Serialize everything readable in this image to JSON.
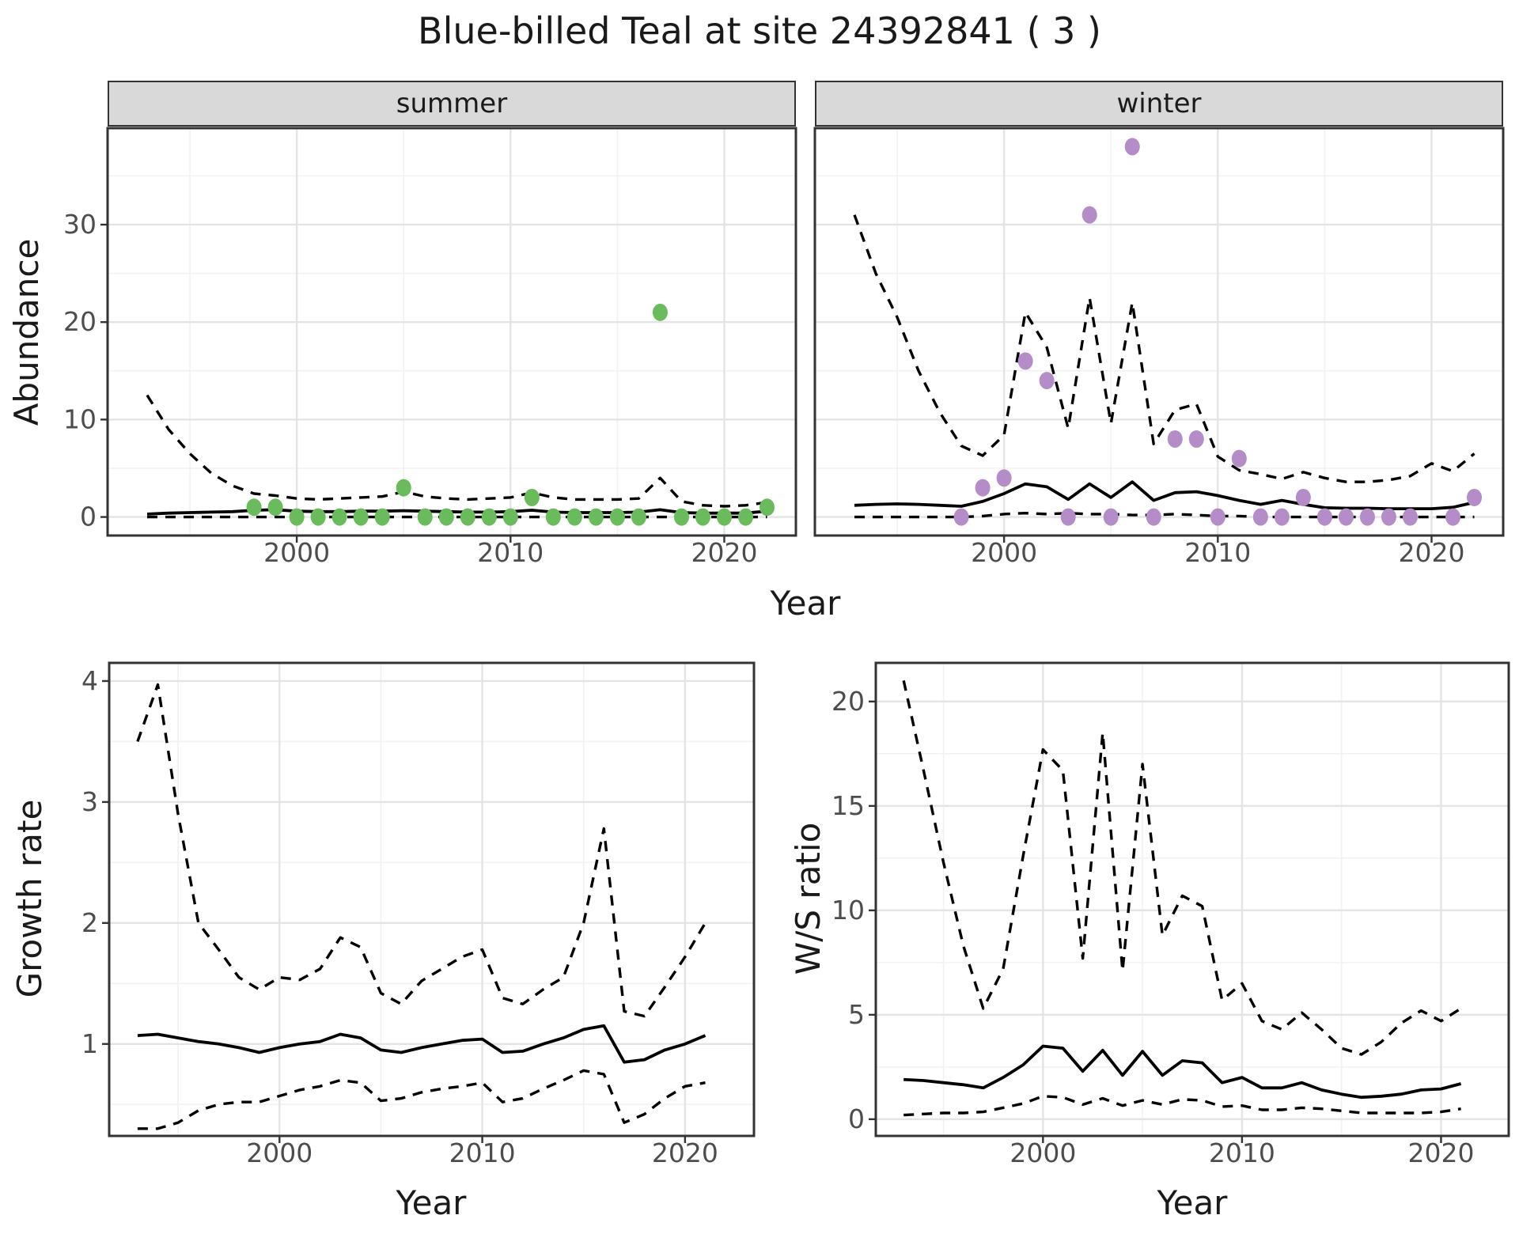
{
  "title": "Blue-billed Teal at site 24392841 ( 3 )",
  "facets": [
    {
      "label": "summer"
    },
    {
      "label": "winter"
    }
  ],
  "axis_titles": {
    "abundance": "Abundance",
    "year": "Year",
    "growth_rate": "Growth rate",
    "ws_ratio": "W/S ratio"
  },
  "colors": {
    "summer_point": "#69BB5B",
    "winter_point": "#B48CC8",
    "line": "#000000",
    "grid_major": "#E4E4E4",
    "grid_minor": "#F2F2F2",
    "panel_border": "#333333",
    "strip_bg": "#D9D9D9",
    "tick_label": "#4D4D4D"
  },
  "chart_data": [
    {
      "id": "abundance-summer",
      "type": "line",
      "facet": "summer",
      "ylabel": "Abundance",
      "xlabel": "Year",
      "x": {
        "domain": [
          1991.15,
          2023.35
        ],
        "major": [
          2000,
          2010,
          2020
        ],
        "minor": [
          1995,
          2005,
          2015
        ],
        "tick_labels": [
          "2000",
          "2010",
          "2020"
        ]
      },
      "y": {
        "domain": [
          -1.9,
          39.9
        ],
        "major": [
          0,
          10,
          20,
          30
        ],
        "minor": [
          5,
          15,
          25,
          35
        ],
        "tick_labels": [
          "0",
          "10",
          "20",
          "30"
        ]
      },
      "years": [
        1993,
        1994,
        1995,
        1996,
        1997,
        1998,
        1999,
        2000,
        2001,
        2002,
        2003,
        2004,
        2005,
        2006,
        2007,
        2008,
        2009,
        2010,
        2011,
        2012,
        2013,
        2014,
        2015,
        2016,
        2017,
        2018,
        2019,
        2020,
        2021,
        2022
      ],
      "series": {
        "median": [
          0.3,
          0.4,
          0.45,
          0.5,
          0.55,
          0.7,
          0.75,
          0.6,
          0.55,
          0.55,
          0.6,
          0.6,
          0.65,
          0.6,
          0.55,
          0.5,
          0.5,
          0.55,
          0.7,
          0.5,
          0.45,
          0.45,
          0.45,
          0.5,
          0.75,
          0.45,
          0.4,
          0.4,
          0.4,
          0.6
        ],
        "upper": [
          12.5,
          9.0,
          6.5,
          4.5,
          3.2,
          2.4,
          2.2,
          1.9,
          1.8,
          1.9,
          2.0,
          2.1,
          2.6,
          2.1,
          1.9,
          1.8,
          1.9,
          2.0,
          2.5,
          2.0,
          1.8,
          1.8,
          1.8,
          1.9,
          4.0,
          1.6,
          1.2,
          1.1,
          1.2,
          1.5
        ],
        "lower": [
          0,
          0,
          0,
          0,
          0,
          0,
          0,
          0,
          0,
          0,
          0,
          0,
          0,
          0,
          0,
          0,
          0,
          0,
          0,
          0,
          0,
          0,
          0,
          0,
          0,
          0,
          0,
          0,
          0,
          0
        ]
      },
      "points": {
        "years": [
          1998,
          1999,
          2000,
          2001,
          2002,
          2003,
          2004,
          2005,
          2006,
          2007,
          2008,
          2009,
          2010,
          2011,
          2012,
          2013,
          2014,
          2015,
          2016,
          2017,
          2018,
          2019,
          2020,
          2021,
          2022
        ],
        "values": [
          1,
          1,
          0,
          0,
          0,
          0,
          0,
          3,
          0,
          0,
          0,
          0,
          0,
          2,
          0,
          0,
          0,
          0,
          0,
          21,
          0,
          0,
          0,
          0,
          1
        ],
        "color": "#69BB5B"
      }
    },
    {
      "id": "abundance-winter",
      "type": "line",
      "facet": "winter",
      "ylabel": "Abundance",
      "xlabel": "Year",
      "x": {
        "domain": [
          1991.15,
          2023.35
        ],
        "major": [
          2000,
          2010,
          2020
        ],
        "minor": [
          1995,
          2005,
          2015
        ],
        "tick_labels": [
          "2000",
          "2010",
          "2020"
        ]
      },
      "y": {
        "domain": [
          -1.9,
          39.9
        ],
        "major": [
          0,
          10,
          20,
          30
        ],
        "minor": [
          5,
          15,
          25,
          35
        ],
        "tick_labels": []
      },
      "years": [
        1993,
        1994,
        1995,
        1996,
        1997,
        1998,
        1999,
        2000,
        2001,
        2002,
        2003,
        2004,
        2005,
        2006,
        2007,
        2008,
        2009,
        2010,
        2011,
        2012,
        2013,
        2014,
        2015,
        2016,
        2017,
        2018,
        2019,
        2020,
        2021,
        2022
      ],
      "series": {
        "median": [
          1.2,
          1.3,
          1.35,
          1.3,
          1.2,
          1.1,
          1.6,
          2.4,
          3.4,
          3.1,
          1.8,
          3.4,
          2.0,
          3.6,
          1.7,
          2.5,
          2.6,
          2.2,
          1.7,
          1.3,
          1.7,
          1.3,
          0.95,
          0.9,
          0.9,
          0.85,
          0.85,
          0.85,
          1.0,
          1.5
        ],
        "upper": [
          31,
          25,
          20.5,
          15,
          10.7,
          7.3,
          6.3,
          8.4,
          21,
          17.4,
          9.1,
          22.5,
          9.6,
          22,
          7.5,
          11.0,
          11.6,
          6.2,
          4.8,
          4.4,
          3.9,
          4.6,
          4.0,
          3.6,
          3.6,
          3.8,
          4.2,
          5.5,
          4.7,
          6.5
        ],
        "lower": [
          0,
          0,
          0,
          0,
          0,
          0,
          0.1,
          0.3,
          0.4,
          0.3,
          0.4,
          0.3,
          0.3,
          0.2,
          0.2,
          0.3,
          0.2,
          0.1,
          0.1,
          0,
          0,
          0,
          0,
          0,
          0,
          0,
          0,
          0,
          0,
          0
        ]
      },
      "points": {
        "years": [
          1998,
          1999,
          2000,
          2001,
          2002,
          2003,
          2004,
          2005,
          2006,
          2007,
          2008,
          2009,
          2010,
          2011,
          2012,
          2013,
          2014,
          2015,
          2016,
          2017,
          2018,
          2019,
          2021,
          2022
        ],
        "values": [
          0,
          3,
          4,
          16,
          14,
          0,
          31,
          0,
          38,
          0,
          8,
          8,
          0,
          6,
          0,
          0,
          2,
          0,
          0,
          0,
          0,
          0,
          0,
          2
        ],
        "color": "#B48CC8"
      }
    },
    {
      "id": "growth-rate",
      "type": "line",
      "facet": null,
      "ylabel": "Growth rate",
      "xlabel": "Year",
      "x": {
        "domain": [
          1991.6,
          2023.4
        ],
        "major": [
          2000,
          2010,
          2020
        ],
        "minor": [
          1995,
          2005,
          2015
        ],
        "tick_labels": [
          "2000",
          "2010",
          "2020"
        ]
      },
      "y": {
        "domain": [
          0.24,
          4.15
        ],
        "major": [
          1,
          2,
          3,
          4
        ],
        "minor": [
          0.5,
          1.5,
          2.5,
          3.5
        ],
        "tick_labels": [
          "1",
          "2",
          "3",
          "4"
        ]
      },
      "years": [
        1993,
        1994,
        1995,
        1996,
        1997,
        1998,
        1999,
        2000,
        2001,
        2002,
        2003,
        2004,
        2005,
        2006,
        2007,
        2008,
        2009,
        2010,
        2011,
        2012,
        2013,
        2014,
        2015,
        2016,
        2017,
        2018,
        2019,
        2020,
        2021
      ],
      "series": {
        "median": [
          1.07,
          1.08,
          1.05,
          1.02,
          1.0,
          0.97,
          0.93,
          0.97,
          1.0,
          1.02,
          1.08,
          1.05,
          0.95,
          0.93,
          0.97,
          1.0,
          1.03,
          1.04,
          0.93,
          0.94,
          1.0,
          1.05,
          1.12,
          1.15,
          0.85,
          0.87,
          0.95,
          1.0,
          1.07
        ],
        "upper": [
          3.5,
          3.97,
          2.9,
          2.0,
          1.78,
          1.55,
          1.45,
          1.55,
          1.53,
          1.62,
          1.88,
          1.8,
          1.42,
          1.33,
          1.52,
          1.62,
          1.72,
          1.78,
          1.38,
          1.33,
          1.45,
          1.55,
          2.0,
          2.78,
          1.27,
          1.23,
          1.47,
          1.72,
          2.0
        ],
        "lower": [
          0.3,
          0.3,
          0.35,
          0.45,
          0.5,
          0.52,
          0.52,
          0.57,
          0.62,
          0.65,
          0.7,
          0.68,
          0.53,
          0.55,
          0.6,
          0.63,
          0.65,
          0.68,
          0.52,
          0.55,
          0.63,
          0.7,
          0.78,
          0.75,
          0.35,
          0.42,
          0.55,
          0.65,
          0.68
        ]
      },
      "points": null
    },
    {
      "id": "ws-ratio",
      "type": "line",
      "facet": null,
      "ylabel": "W/S ratio",
      "xlabel": "Year",
      "x": {
        "domain": [
          1991.6,
          2023.4
        ],
        "major": [
          2000,
          2010,
          2020
        ],
        "minor": [
          1995,
          2005,
          2015
        ],
        "tick_labels": [
          "2000",
          "2010",
          "2020"
        ]
      },
      "y": {
        "domain": [
          -0.8,
          21.85
        ],
        "major": [
          0,
          5,
          10,
          15,
          20
        ],
        "minor": [
          2.5,
          7.5,
          12.5,
          17.5
        ],
        "tick_labels": [
          "0",
          "5",
          "10",
          "15",
          "20"
        ]
      },
      "years": [
        1993,
        1994,
        1995,
        1996,
        1997,
        1998,
        1999,
        2000,
        2001,
        2002,
        2003,
        2004,
        2005,
        2006,
        2007,
        2008,
        2009,
        2010,
        2011,
        2012,
        2013,
        2014,
        2015,
        2016,
        2017,
        2018,
        2019,
        2020,
        2021
      ],
      "series": {
        "median": [
          1.9,
          1.85,
          1.75,
          1.65,
          1.5,
          2.0,
          2.6,
          3.5,
          3.4,
          2.3,
          3.3,
          2.1,
          3.25,
          2.1,
          2.8,
          2.7,
          1.75,
          2.0,
          1.5,
          1.5,
          1.75,
          1.4,
          1.2,
          1.05,
          1.1,
          1.2,
          1.4,
          1.45,
          1.7
        ],
        "upper": [
          21,
          16.7,
          12.3,
          8.3,
          5.3,
          7.2,
          12.6,
          17.7,
          16.7,
          7.7,
          18.5,
          7.1,
          17.0,
          8.8,
          10.7,
          10.2,
          5.7,
          6.5,
          4.7,
          4.3,
          5.1,
          4.3,
          3.4,
          3.1,
          3.7,
          4.6,
          5.2,
          4.7,
          5.3
        ],
        "lower": [
          0.2,
          0.25,
          0.3,
          0.3,
          0.35,
          0.55,
          0.75,
          1.1,
          1.05,
          0.7,
          1.0,
          0.65,
          0.9,
          0.7,
          0.95,
          0.9,
          0.6,
          0.65,
          0.45,
          0.45,
          0.55,
          0.5,
          0.4,
          0.3,
          0.3,
          0.3,
          0.3,
          0.35,
          0.5
        ]
      },
      "points": null
    }
  ]
}
